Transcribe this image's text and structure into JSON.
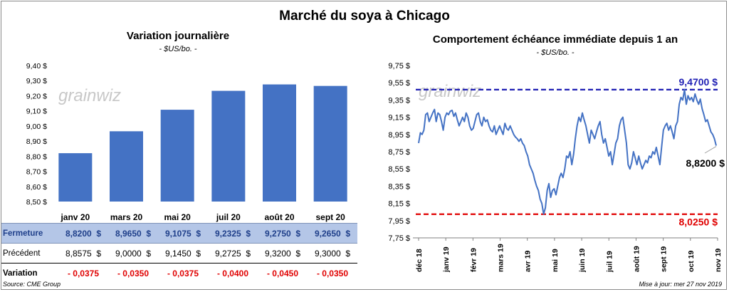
{
  "title": "Marché du soya à Chicago",
  "source": "Source: CME Group",
  "updated": "Mise à jour: mer 27 nov 2019",
  "watermark": "grainwiz",
  "colors": {
    "bar": "#4472c4",
    "line": "#4472c4",
    "max_line": "#1f1fb4",
    "min_line": "#e00000",
    "header_row": "#b4c6e7"
  },
  "chart_data": [
    {
      "type": "bar",
      "title": "Variation journalière",
      "unit": "- $US/bo. -",
      "categories": [
        "janv 20",
        "mars 20",
        "mai 20",
        "juil 20",
        "août 20",
        "sept 20"
      ],
      "values": [
        8.82,
        8.965,
        9.1075,
        9.2325,
        9.275,
        9.265
      ],
      "ylim": [
        8.5,
        9.4
      ],
      "yticks": [
        "8,50 $",
        "8,60 $",
        "8,70 $",
        "8,80 $",
        "8,90 $",
        "9,00 $",
        "9,10 $",
        "9,20 $",
        "9,30 $",
        "9,40 $"
      ],
      "table": {
        "rows": [
          {
            "label": "Fermeture",
            "values": [
              "8,8200  $",
              "8,9650  $",
              "9,1075  $",
              "9,2325  $",
              "9,2750  $",
              "9,2650  $"
            ]
          },
          {
            "label": "Précédent",
            "values": [
              "8,8575  $",
              "9,0000  $",
              "9,1450  $",
              "9,2725  $",
              "9,3200  $",
              "9,3000  $"
            ]
          },
          {
            "label": "Variation",
            "values": [
              "- 0,0375",
              "- 0,0350",
              "- 0,0375",
              "- 0,0400",
              "- 0,0450",
              "- 0,0350"
            ]
          }
        ]
      }
    },
    {
      "type": "line",
      "title": "Comportement  échéance immédiate depuis 1 an",
      "unit": "- $US/bo. -",
      "ylim": [
        7.75,
        9.75
      ],
      "yticks": [
        "7,75 $",
        "7,95 $",
        "8,15 $",
        "8,35 $",
        "8,55 $",
        "8,75 $",
        "8,95 $",
        "9,15 $",
        "9,35 $",
        "9,55 $",
        "9,75 $"
      ],
      "xticks": [
        "déc 18",
        "janv 19",
        "févr 19",
        "mars 19",
        "avr 19",
        "mai 19",
        "juin 19",
        "juil 19",
        "août 19",
        "sept 19",
        "oct 19",
        "nov 19"
      ],
      "max_value": 9.47,
      "max_label": "9,4700 $",
      "min_value": 8.025,
      "min_label": "8,0250 $",
      "last_label": "8,8200 $",
      "series": [
        {
          "name": "Échéance immédiate",
          "values": [
            8.85,
            8.97,
            8.95,
            9.0,
            9.18,
            9.2,
            9.1,
            9.15,
            9.2,
            9.24,
            9.1,
            9.2,
            9.18,
            9.1,
            9.0,
            9.15,
            9.2,
            9.18,
            9.22,
            9.23,
            9.16,
            9.2,
            9.12,
            9.05,
            9.1,
            9.15,
            9.1,
            9.2,
            9.15,
            9.05,
            9.0,
            9.02,
            9.1,
            9.18,
            9.2,
            9.1,
            9.05,
            9.15,
            9.1,
            9.12,
            9.05,
            9.0,
            8.98,
            9.05,
            8.95,
            9.0,
            9.05,
            9.0,
            8.95,
            9.08,
            9.02,
            9.0,
            9.05,
            9.0,
            8.95,
            8.92,
            8.9,
            8.87,
            8.9,
            8.85,
            8.82,
            8.75,
            8.7,
            8.6,
            8.55,
            8.5,
            8.42,
            8.35,
            8.3,
            8.2,
            8.15,
            8.025,
            8.1,
            8.3,
            8.38,
            8.22,
            8.3,
            8.32,
            8.25,
            8.35,
            8.45,
            8.5,
            8.45,
            8.55,
            8.7,
            8.68,
            8.75,
            8.6,
            8.72,
            8.9,
            9.05,
            9.15,
            9.1,
            9.2,
            9.12,
            9.05,
            8.95,
            8.85,
            9.0,
            8.95,
            8.9,
            8.98,
            9.05,
            9.1,
            8.95,
            8.85,
            8.9,
            8.8,
            8.7,
            8.75,
            8.6,
            8.72,
            8.85,
            8.9,
            9.05,
            9.12,
            9.15,
            9.0,
            8.85,
            8.6,
            8.55,
            8.62,
            8.75,
            8.68,
            8.6,
            8.7,
            8.62,
            8.55,
            8.6,
            8.65,
            8.62,
            8.7,
            8.68,
            8.75,
            8.72,
            8.8,
            8.7,
            8.6,
            8.8,
            9.0,
            9.05,
            9.08,
            9.0,
            9.05,
            8.98,
            8.9,
            9.05,
            9.1,
            9.3,
            9.38,
            9.35,
            9.47,
            9.3,
            9.4,
            9.35,
            9.38,
            9.33,
            9.42,
            9.35,
            9.3,
            9.36,
            9.25,
            9.18,
            9.1,
            9.12,
            9.05,
            8.98,
            8.95,
            8.9,
            8.82
          ]
        }
      ]
    }
  ]
}
